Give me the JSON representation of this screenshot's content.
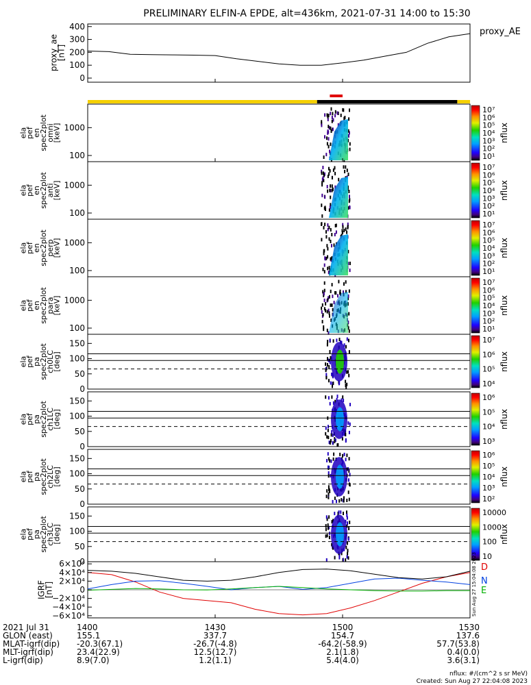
{
  "title": "PRELIMINARY ELFIN-A EPDE, alt=436km, 2021-07-31 14:00 to 15:30",
  "colors": {
    "sunlit_bar": "#f5d000",
    "shadow_bar": "#000000",
    "science_zone_bar": "#e00000",
    "igrf_d": "#e00000",
    "igrf_n": "#0040e0",
    "igrf_e": "#00b000",
    "igrf_total": "#000000"
  },
  "panels": {
    "ae": {
      "ylabel": [
        "proxy_ae",
        "[nT]"
      ],
      "right_label": "proxy_AE",
      "yticks": [
        "400",
        "300",
        "200",
        "100",
        "0"
      ]
    },
    "energy": [
      {
        "ylabel": [
          "ela",
          "pef",
          "en",
          "spec2plot",
          "omni",
          "[keV]"
        ]
      },
      {
        "ylabel": [
          "ela",
          "pef",
          "en",
          "spec2plot",
          "anti",
          "[keV]"
        ]
      },
      {
        "ylabel": [
          "ela",
          "pef",
          "en",
          "spec2plot",
          "perp",
          "[keV]"
        ]
      },
      {
        "ylabel": [
          "ela",
          "pef",
          "en",
          "spec2plot",
          "para",
          "[keV]"
        ]
      }
    ],
    "energy_yticks": [
      "1000",
      "100"
    ],
    "pitch": [
      {
        "ylabel": [
          "ela",
          "pef",
          "pa",
          "spec2plot",
          "ch0LC",
          "[deg]"
        ]
      },
      {
        "ylabel": [
          "ela",
          "pef",
          "pa",
          "spec2plot",
          "ch1LC",
          "[deg]"
        ]
      },
      {
        "ylabel": [
          "ela",
          "pef",
          "pa",
          "spec2plot",
          "ch2LC",
          "[deg]"
        ]
      },
      {
        "ylabel": [
          "ela",
          "pef",
          "pa",
          "spec2plot",
          "ch3LC",
          "[deg]"
        ]
      }
    ],
    "pitch_yticks": [
      "150",
      "100",
      "50",
      "0"
    ],
    "igrf": {
      "ylabel": [
        "IGRF",
        "[nT]"
      ],
      "yticks": [
        "6×10⁴",
        "4×10⁴",
        "2×10⁴",
        "0",
        "−2×10⁴",
        "−4×10⁴",
        "−6×10⁴"
      ],
      "legend": [
        "D",
        "N",
        "E"
      ],
      "side_stamp": "Sun Aug 27 15:04:08 2023"
    }
  },
  "colorbars": {
    "label": "nflux",
    "bars": [
      {
        "ticks": [
          "10⁷",
          "10⁶",
          "10⁵",
          "10⁴",
          "10³",
          "10²",
          "10¹"
        ]
      },
      {
        "ticks": [
          "10⁷",
          "10⁶",
          "10⁵",
          "10⁴",
          "10³",
          "10²",
          "10¹"
        ]
      },
      {
        "ticks": [
          "10⁷",
          "10⁶",
          "10⁵",
          "10⁴",
          "10³",
          "10²",
          "10¹"
        ]
      },
      {
        "ticks": [
          "10⁷",
          "10⁶",
          "10⁵",
          "10⁴",
          "10³",
          "10²",
          "10¹"
        ]
      },
      {
        "ticks": [
          "10⁷",
          "10⁶",
          "10⁵",
          "10⁴"
        ]
      },
      {
        "ticks": [
          "10⁶",
          "10⁵",
          "10⁴",
          "10³"
        ]
      },
      {
        "ticks": [
          "10⁶",
          "10⁵",
          "10⁴",
          "10³",
          "10²"
        ]
      },
      {
        "ticks": [
          "10000",
          "1000",
          "100",
          "10"
        ]
      }
    ]
  },
  "footer": {
    "row_labels": [
      "2021 Jul 31",
      "GLON (east)",
      "MLAT-igrf(dip)",
      "MLT-igrf(dip)",
      "L-igrf(dip)"
    ],
    "columns": [
      {
        "values": [
          "1400",
          "155.1",
          "-20.3(67.1)",
          "23.4(22.9)",
          "8.9(7.0)"
        ]
      },
      {
        "values": [
          "1430",
          "337.7",
          "-26.7(-4.8)",
          "12.5(12.7)",
          "1.2(1.1)"
        ]
      },
      {
        "values": [
          "1500",
          "154.7",
          "-64.2(-58.9)",
          "2.1(1.8)",
          "5.4(4.0)"
        ]
      },
      {
        "values": [
          "1530",
          "137.6",
          "57.7(53.8)",
          "0.4(0.0)",
          "3.6(3.1)"
        ]
      }
    ],
    "units_note": "nflux: #/(cm^2 s sr MeV)",
    "created": "Created: Sun Aug 27 22:04:08 2023"
  },
  "chart_data": {
    "type": "line",
    "x_range": [
      "14:00",
      "15:30"
    ],
    "ae_series": {
      "name": "proxy_AE",
      "x": [
        "14:00",
        "14:05",
        "14:10",
        "14:15",
        "14:20",
        "14:25",
        "14:30",
        "14:35",
        "14:40",
        "14:45",
        "14:50",
        "14:55",
        "15:00",
        "15:05",
        "15:10",
        "15:15",
        "15:20",
        "15:25",
        "15:30"
      ],
      "values": [
        210,
        205,
        185,
        182,
        180,
        178,
        175,
        150,
        130,
        110,
        100,
        100,
        118,
        140,
        170,
        200,
        270,
        320,
        345
      ],
      "ylim": [
        0,
        420
      ]
    },
    "igrf_series": [
      {
        "name": "D",
        "values": [
          40000,
          35000,
          18000,
          -5000,
          -20000,
          -25000,
          -30000,
          -45000,
          -55000,
          -58000,
          -55000,
          -42000,
          -25000,
          -5000,
          15000,
          30000,
          40000
        ]
      },
      {
        "name": "N",
        "values": [
          2000,
          12000,
          20000,
          21000,
          15000,
          8000,
          0,
          5000,
          8000,
          1000,
          5000,
          15000,
          25000,
          27000,
          22000,
          18000,
          12000
        ]
      },
      {
        "name": "E",
        "values": [
          -1000,
          1000,
          3000,
          2000,
          0,
          -500,
          2000,
          5000,
          8000,
          5000,
          2000,
          0,
          -2000,
          -3000,
          -3000,
          -2000,
          -2000
        ]
      },
      {
        "name": "",
        "values": [
          45000,
          43000,
          38000,
          30000,
          22000,
          20000,
          22000,
          30000,
          40000,
          47000,
          48000,
          44000,
          36000,
          28000,
          25000,
          30000,
          43000
        ]
      }
    ],
    "igrf_ylim": [
      -65000,
      65000
    ],
    "energy_ylim_keV": [
      60,
      7000
    ],
    "pitch_ylim_deg": [
      0,
      180
    ],
    "pitch_reference_lines_deg": [
      116,
      94,
      66
    ],
    "lightning_bar": [
      {
        "state": "sunlit",
        "start": "14:00",
        "end": "14:54"
      },
      {
        "state": "shadow",
        "start": "14:54",
        "end": "15:27"
      },
      {
        "state": "sunlit",
        "start": "15:27",
        "end": "15:30"
      }
    ],
    "science_zone": {
      "start": "14:57",
      "end": "15:00"
    },
    "x_ticks": [
      "1400",
      "1430",
      "1500",
      "1530"
    ]
  }
}
